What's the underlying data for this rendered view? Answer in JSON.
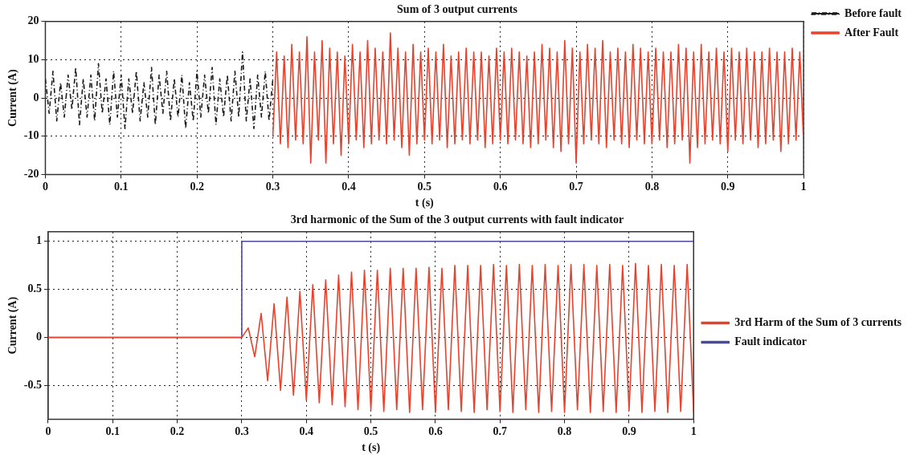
{
  "chart_data": [
    {
      "type": "line",
      "title": "Sum of 3 output currents",
      "xlabel": "t (s)",
      "ylabel": "Current (A)",
      "xlim": [
        0,
        1
      ],
      "xticks": [
        0,
        0.1,
        0.2,
        0.3,
        0.4,
        0.5,
        0.6,
        0.7,
        0.8,
        0.9,
        1
      ],
      "ylim": [
        -20,
        20
      ],
      "yticks": [
        -20,
        -10,
        0,
        10,
        20
      ],
      "grid": true,
      "legend": "top right",
      "marker": "none",
      "series": [
        {
          "name": "Before fault",
          "color": "#1a1a1a",
          "line_style": "dashed",
          "x": [
            0,
            0.005,
            0.01,
            0.015,
            0.02,
            0.025,
            0.03,
            0.035,
            0.04,
            0.045,
            0.05,
            0.055,
            0.06,
            0.065,
            0.07,
            0.075,
            0.08,
            0.085,
            0.09,
            0.095,
            0.1,
            0.105,
            0.11,
            0.115,
            0.12,
            0.125,
            0.13,
            0.135,
            0.14,
            0.145,
            0.15,
            0.155,
            0.16,
            0.165,
            0.17,
            0.175,
            0.18,
            0.185,
            0.19,
            0.195,
            0.2,
            0.205,
            0.21,
            0.215,
            0.22,
            0.225,
            0.23,
            0.235,
            0.24,
            0.245,
            0.25,
            0.255,
            0.26,
            0.265,
            0.27,
            0.275,
            0.28,
            0.285,
            0.29,
            0.295,
            0.3
          ],
          "values": [
            5,
            -4,
            7,
            -6,
            4,
            -5,
            6,
            -3,
            8,
            -7,
            5,
            -5,
            6,
            -6,
            9,
            -4,
            5,
            -7,
            7,
            -5,
            6,
            -8,
            5,
            -4,
            7,
            -6,
            4,
            -5,
            8,
            -7,
            6,
            -4,
            7,
            -6,
            5,
            -5,
            6,
            -8,
            4,
            -6,
            7,
            -5,
            6,
            -4,
            8,
            -7,
            5,
            -5,
            6,
            -6,
            7,
            -5,
            12,
            -6,
            5,
            -8,
            6,
            -5,
            7,
            -6,
            5
          ]
        },
        {
          "name": "After Fault",
          "color": "#e8412c",
          "line_style": "solid",
          "x": [
            0.3,
            0.305,
            0.31,
            0.315,
            0.32,
            0.325,
            0.33,
            0.335,
            0.34,
            0.345,
            0.35,
            0.355,
            0.36,
            0.365,
            0.37,
            0.375,
            0.38,
            0.385,
            0.39,
            0.395,
            0.4,
            0.405,
            0.41,
            0.415,
            0.42,
            0.425,
            0.43,
            0.435,
            0.44,
            0.445,
            0.45,
            0.455,
            0.46,
            0.465,
            0.47,
            0.475,
            0.48,
            0.485,
            0.49,
            0.495,
            0.5,
            0.505,
            0.51,
            0.515,
            0.52,
            0.525,
            0.53,
            0.535,
            0.54,
            0.545,
            0.55,
            0.555,
            0.56,
            0.565,
            0.57,
            0.575,
            0.58,
            0.585,
            0.59,
            0.595,
            0.6,
            0.605,
            0.61,
            0.615,
            0.62,
            0.625,
            0.63,
            0.635,
            0.64,
            0.645,
            0.65,
            0.655,
            0.66,
            0.665,
            0.67,
            0.675,
            0.68,
            0.685,
            0.69,
            0.695,
            0.7,
            0.705,
            0.71,
            0.715,
            0.72,
            0.725,
            0.73,
            0.735,
            0.74,
            0.745,
            0.75,
            0.755,
            0.76,
            0.765,
            0.77,
            0.775,
            0.78,
            0.785,
            0.79,
            0.795,
            0.8,
            0.805,
            0.81,
            0.815,
            0.82,
            0.825,
            0.83,
            0.835,
            0.84,
            0.845,
            0.85,
            0.855,
            0.86,
            0.865,
            0.87,
            0.875,
            0.88,
            0.885,
            0.89,
            0.895,
            0.9,
            0.905,
            0.91,
            0.915,
            0.92,
            0.925,
            0.93,
            0.935,
            0.94,
            0.945,
            0.95,
            0.955,
            0.96,
            0.965,
            0.97,
            0.975,
            0.98,
            0.985,
            0.99,
            0.995,
            1
          ],
          "values": [
            -10,
            12,
            -12,
            11,
            -13,
            14,
            -11,
            12,
            -12,
            16,
            -17,
            12,
            -11,
            15,
            -17,
            13,
            -12,
            12,
            -15,
            11,
            -12,
            14,
            -11,
            12,
            -13,
            15,
            -12,
            13,
            -11,
            12,
            -12,
            17,
            -11,
            13,
            -13,
            12,
            -15,
            14,
            -12,
            12,
            -11,
            13,
            -12,
            12,
            -11,
            14,
            -13,
            11,
            -12,
            12,
            -11,
            13,
            -12,
            12,
            -11,
            12,
            -13,
            11,
            -12,
            13,
            -11,
            12,
            -12,
            13,
            -11,
            12,
            -12,
            11,
            -13,
            12,
            -12,
            14,
            -11,
            13,
            -13,
            12,
            -14,
            15,
            -12,
            13,
            -17,
            12,
            -12,
            14,
            -11,
            13,
            -12,
            15,
            -13,
            12,
            -11,
            13,
            -12,
            12,
            -13,
            14,
            -11,
            13,
            -12,
            12,
            -12,
            13,
            -11,
            12,
            -13,
            12,
            -12,
            14,
            -11,
            13,
            -17,
            12,
            -13,
            14,
            -12,
            12,
            -11,
            13,
            -12,
            12,
            -14,
            13,
            -11,
            12,
            -12,
            13,
            -11,
            12,
            -13,
            12,
            -12,
            13,
            -11,
            12,
            -14,
            12,
            -12,
            13,
            -11,
            12,
            -12
          ]
        }
      ]
    },
    {
      "type": "line",
      "title": "3rd harmonic of the Sum of the 3 output currents with fault indicator",
      "xlabel": "t (s)",
      "ylabel": "Current (A)",
      "xlim": [
        0,
        1
      ],
      "xticks": [
        0,
        0.1,
        0.2,
        0.3,
        0.4,
        0.5,
        0.6,
        0.7,
        0.8,
        0.9,
        1
      ],
      "ylim": [
        -0.85,
        1.1
      ],
      "yticks": [
        -0.5,
        0,
        0.5,
        1
      ],
      "grid": true,
      "legend": "right",
      "marker": "none",
      "line_style": "solid",
      "series": [
        {
          "name": "3rd Harm of the Sum of 3 currents",
          "color": "#e8412c",
          "x": [
            0,
            0.3,
            0.31,
            0.32,
            0.33,
            0.34,
            0.35,
            0.36,
            0.37,
            0.38,
            0.39,
            0.4,
            0.41,
            0.42,
            0.43,
            0.44,
            0.45,
            0.46,
            0.47,
            0.48,
            0.49,
            0.5,
            0.51,
            0.52,
            0.53,
            0.54,
            0.55,
            0.56,
            0.57,
            0.58,
            0.59,
            0.6,
            0.61,
            0.62,
            0.63,
            0.64,
            0.65,
            0.66,
            0.67,
            0.68,
            0.69,
            0.7,
            0.71,
            0.72,
            0.73,
            0.74,
            0.75,
            0.76,
            0.77,
            0.78,
            0.79,
            0.8,
            0.81,
            0.82,
            0.83,
            0.84,
            0.85,
            0.86,
            0.87,
            0.88,
            0.89,
            0.9,
            0.91,
            0.92,
            0.93,
            0.94,
            0.95,
            0.96,
            0.97,
            0.98,
            0.99,
            1
          ],
          "values": [
            0,
            0,
            0.1,
            -0.2,
            0.25,
            -0.45,
            0.35,
            -0.55,
            0.42,
            -0.6,
            0.48,
            -0.65,
            0.55,
            -0.68,
            0.6,
            -0.7,
            0.65,
            -0.72,
            0.68,
            -0.75,
            0.7,
            -0.75,
            0.7,
            -0.77,
            0.72,
            -0.75,
            0.72,
            -0.78,
            0.72,
            -0.75,
            0.73,
            -0.78,
            0.72,
            -0.75,
            0.75,
            -0.77,
            0.75,
            -0.78,
            0.75,
            -0.75,
            0.76,
            -0.77,
            0.75,
            -0.78,
            0.76,
            -0.75,
            0.75,
            -0.78,
            0.76,
            -0.77,
            0.75,
            -0.78,
            0.76,
            -0.75,
            0.76,
            -0.78,
            0.75,
            -0.77,
            0.76,
            -0.78,
            0.75,
            -0.76,
            0.77,
            -0.78,
            0.75,
            -0.77,
            0.76,
            -0.78,
            0.75,
            -0.77,
            0.76,
            -0.78
          ]
        },
        {
          "name": "Fault indicator",
          "color": "#4a4a9a",
          "x": [
            0,
            0.3,
            0.3,
            1
          ],
          "values": [
            0,
            0,
            1,
            1
          ]
        }
      ]
    }
  ]
}
